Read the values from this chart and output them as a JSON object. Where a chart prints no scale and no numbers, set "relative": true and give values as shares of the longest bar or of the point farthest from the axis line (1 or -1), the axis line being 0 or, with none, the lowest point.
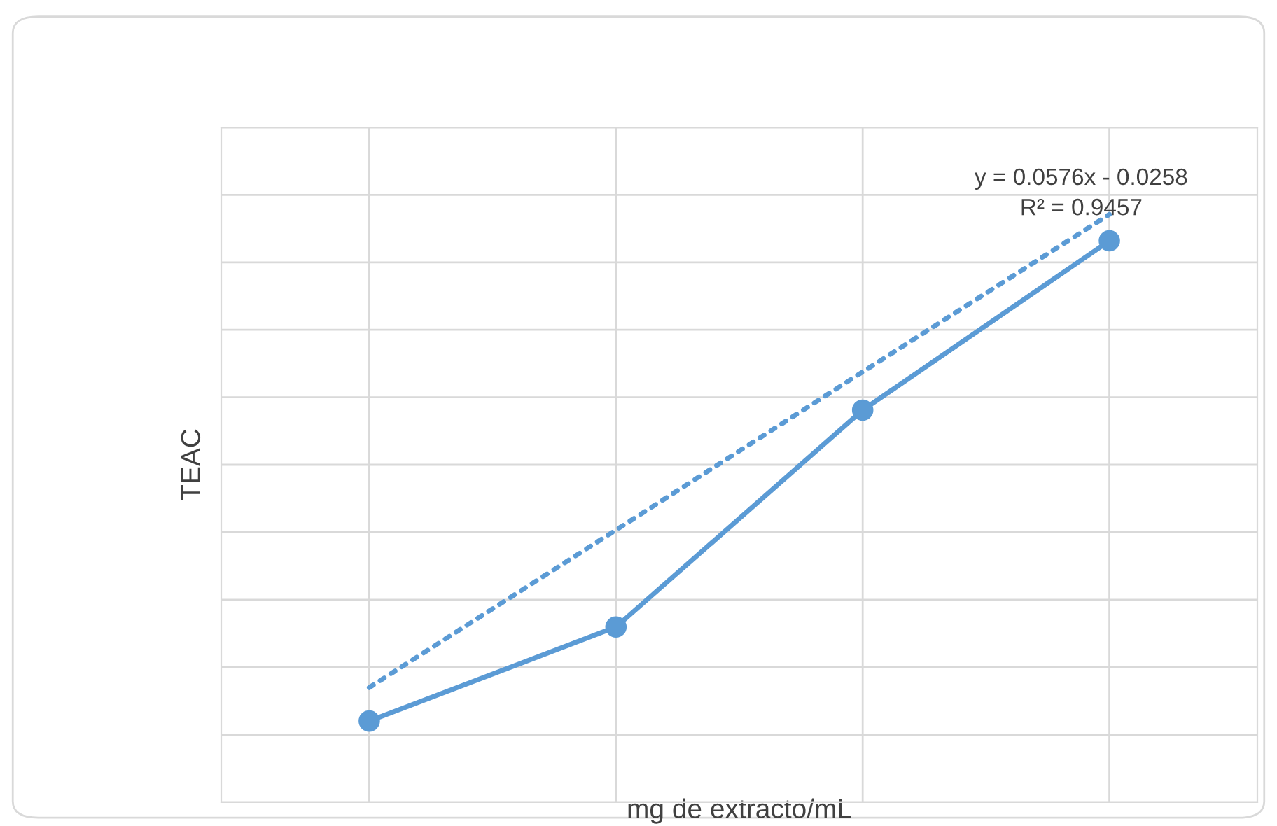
{
  "chart_data": {
    "type": "line",
    "xlabel": "mg de extracto/mL",
    "ylabel": "TEAC",
    "relative": true,
    "categories": [
      null,
      null,
      null,
      null
    ],
    "tick_labels": false,
    "grid": true,
    "marker": "circle",
    "series": [
      {
        "color": "#5b9bd5",
        "values": [
          0.138,
          0.298,
          0.667,
          0.955
        ]
      },
      {
        "color": "#5b9bd5",
        "line_style": "dotted",
        "marker": "none",
        "values": [
          0.195,
          0.463,
          0.732,
          1.0
        ]
      }
    ],
    "annotations": [
      "y = 0.0576x - 0.0258\nR² = 0.9457"
    ]
  }
}
